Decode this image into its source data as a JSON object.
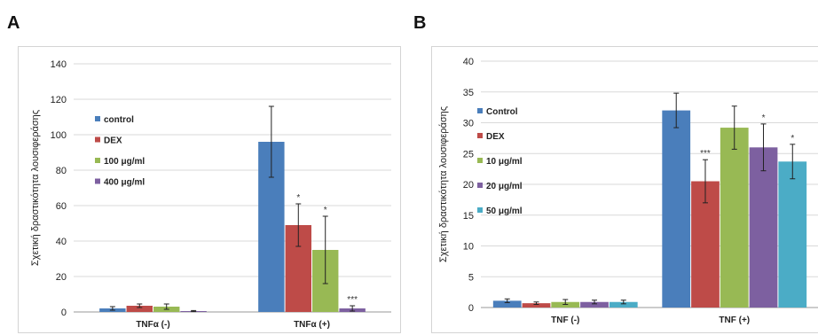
{
  "panel_labels": [
    "A",
    "B"
  ],
  "chart_data": [
    {
      "type": "bar",
      "panel": "A",
      "title": "",
      "xlabel": "",
      "ylabel": "Σχετική δραστικότητα λουσιφεράσης",
      "ylim": [
        0,
        140
      ],
      "yticks": [
        0,
        20,
        40,
        60,
        80,
        100,
        120,
        140
      ],
      "grid": true,
      "legend_position": "left, inside plot area",
      "categories": [
        "TNFα (-)",
        "TNFα (+)"
      ],
      "series": [
        {
          "name": "control",
          "color": "#4a7ebb",
          "values": [
            2,
            96
          ],
          "errors": [
            1,
            20
          ],
          "annotations": [
            "",
            ""
          ]
        },
        {
          "name": "DEX",
          "color": "#be4b48",
          "values": [
            3.5,
            49
          ],
          "errors": [
            1,
            12
          ],
          "annotations": [
            "",
            "*"
          ]
        },
        {
          "name": "100 μg/ml",
          "color": "#98b954",
          "values": [
            3,
            35
          ],
          "errors": [
            1.5,
            19
          ],
          "annotations": [
            "",
            "*"
          ]
        },
        {
          "name": "400 μg/ml",
          "color": "#7d60a0",
          "values": [
            0.5,
            2
          ],
          "errors": [
            0.3,
            1.5
          ],
          "annotations": [
            "",
            "***"
          ]
        }
      ]
    },
    {
      "type": "bar",
      "panel": "B",
      "title": "",
      "xlabel": "",
      "ylabel": "Σχετική δραστικότητα λουσιφεράσης",
      "ylim": [
        0,
        40
      ],
      "yticks": [
        0,
        5,
        10,
        15,
        20,
        25,
        30,
        35,
        40
      ],
      "grid": true,
      "legend_position": "left, inside plot area",
      "categories": [
        "TNF (-)",
        "TNF (+)"
      ],
      "series": [
        {
          "name": "Control",
          "color": "#4a7ebb",
          "values": [
            1.1,
            32
          ],
          "errors": [
            0.3,
            2.8
          ],
          "annotations": [
            "",
            ""
          ]
        },
        {
          "name": "DEX",
          "color": "#be4b48",
          "values": [
            0.7,
            20.5
          ],
          "errors": [
            0.2,
            3.5
          ],
          "annotations": [
            "",
            "***"
          ]
        },
        {
          "name": "10 μg/ml",
          "color": "#98b954",
          "values": [
            0.9,
            29.2
          ],
          "errors": [
            0.4,
            3.5
          ],
          "annotations": [
            "",
            ""
          ]
        },
        {
          "name": "20 μg/ml",
          "color": "#7d60a0",
          "values": [
            0.9,
            26
          ],
          "errors": [
            0.3,
            3.8
          ],
          "annotations": [
            "",
            "*"
          ]
        },
        {
          "name": "50 μg/ml",
          "color": "#4bacc6",
          "values": [
            0.9,
            23.7
          ],
          "errors": [
            0.3,
            2.8
          ],
          "annotations": [
            "",
            "*"
          ]
        }
      ]
    }
  ]
}
